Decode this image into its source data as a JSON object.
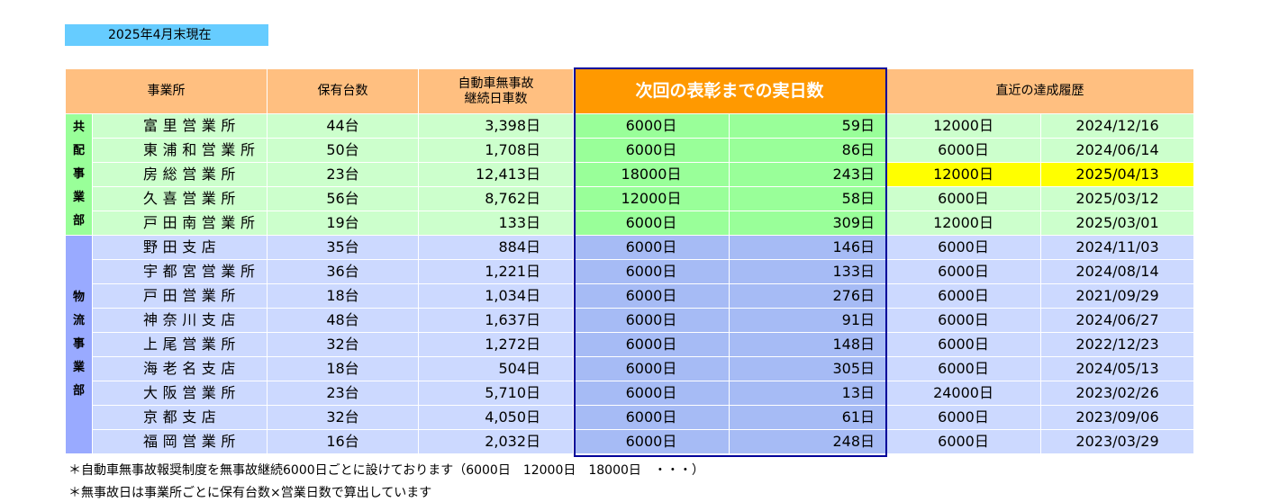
{
  "as_of": "2025年4月末現在",
  "headers": {
    "office": "事業所",
    "vehicles": "保有台数",
    "days_line1": "自動車無事故",
    "days_line2": "継続日車数",
    "next_award": "次回の表彰までの実日数",
    "recent": "直近の達成履歴"
  },
  "groups": [
    {
      "name": "共配事業部",
      "rows": [
        {
          "office": "富里営業所",
          "vehicles": "44台",
          "days": "3,398日",
          "target": "6000日",
          "remaining": "59日",
          "recent_target": "12000日",
          "recent_date": "2024/12/16"
        },
        {
          "office": "東浦和営業所",
          "vehicles": "50台",
          "days": "1,708日",
          "target": "6000日",
          "remaining": "86日",
          "recent_target": "6000日",
          "recent_date": "2024/06/14"
        },
        {
          "office": "房総営業所",
          "vehicles": "23台",
          "days": "12,413日",
          "target": "18000日",
          "remaining": "243日",
          "recent_target": "12000日",
          "recent_date": "2025/04/13"
        },
        {
          "office": "久喜営業所",
          "vehicles": "56台",
          "days": "8,762日",
          "target": "12000日",
          "remaining": "58日",
          "recent_target": "6000日",
          "recent_date": "2025/03/12"
        },
        {
          "office": "戸田南営業所",
          "vehicles": "19台",
          "days": "133日",
          "target": "6000日",
          "remaining": "309日",
          "recent_target": "12000日",
          "recent_date": "2025/03/01"
        }
      ]
    },
    {
      "name": "物流事業部",
      "rows": [
        {
          "office": "野田支店",
          "vehicles": "35台",
          "days": "884日",
          "target": "6000日",
          "remaining": "146日",
          "recent_target": "6000日",
          "recent_date": "2024/11/03"
        },
        {
          "office": "宇都宮営業所",
          "vehicles": "36台",
          "days": "1,221日",
          "target": "6000日",
          "remaining": "133日",
          "recent_target": "6000日",
          "recent_date": "2024/08/14"
        },
        {
          "office": "戸田営業所",
          "vehicles": "18台",
          "days": "1,034日",
          "target": "6000日",
          "remaining": "276日",
          "recent_target": "6000日",
          "recent_date": "2021/09/29"
        },
        {
          "office": "神奈川支店",
          "vehicles": "48台",
          "days": "1,637日",
          "target": "6000日",
          "remaining": "91日",
          "recent_target": "6000日",
          "recent_date": "2024/06/27"
        },
        {
          "office": "上尾営業所",
          "vehicles": "32台",
          "days": "1,272日",
          "target": "6000日",
          "remaining": "148日",
          "recent_target": "6000日",
          "recent_date": "2022/12/23"
        },
        {
          "office": "海老名支店",
          "vehicles": "18台",
          "days": "504日",
          "target": "6000日",
          "remaining": "305日",
          "recent_target": "6000日",
          "recent_date": "2024/05/13"
        },
        {
          "office": "大阪営業所",
          "vehicles": "23台",
          "days": "5,710日",
          "target": "6000日",
          "remaining": "13日",
          "recent_target": "24000日",
          "recent_date": "2023/02/26"
        },
        {
          "office": "京都支店",
          "vehicles": "32台",
          "days": "4,050日",
          "target": "6000日",
          "remaining": "61日",
          "recent_target": "6000日",
          "recent_date": "2023/09/06"
        },
        {
          "office": "福岡営業所",
          "vehicles": "16台",
          "days": "2,032日",
          "target": "6000日",
          "remaining": "248日",
          "recent_target": "6000日",
          "recent_date": "2023/03/29"
        }
      ]
    }
  ],
  "highlight_color": "#ffff00",
  "notes": [
    "＊自動車無事故報奨制度を無事故継続6000日ごとに設けております（6000日　12000日　18000日　・・・）",
    "＊無事故日は事業所ごとに保有台数×営業日数で算出しています"
  ]
}
